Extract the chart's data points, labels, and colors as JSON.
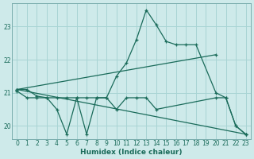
{
  "xlabel": "Humidex (Indice chaleur)",
  "bg_color": "#ceeaea",
  "line_color": "#1a6b5a",
  "grid_color": "#a8d4d4",
  "xlim": [
    -0.5,
    23.5
  ],
  "ylim": [
    19.6,
    23.7
  ],
  "yticks": [
    20,
    21,
    22,
    23
  ],
  "xticks": [
    0,
    1,
    2,
    3,
    4,
    5,
    6,
    7,
    8,
    9,
    10,
    11,
    12,
    13,
    14,
    15,
    16,
    17,
    18,
    19,
    20,
    21,
    22,
    23
  ],
  "lines": [
    {
      "x": [
        0,
        1,
        2,
        3,
        4,
        5,
        6,
        7,
        8,
        9,
        10,
        11,
        12,
        13,
        14,
        15,
        16,
        17,
        18,
        20,
        21,
        22,
        23
      ],
      "y": [
        21.1,
        21.1,
        20.9,
        20.85,
        20.85,
        20.85,
        20.85,
        20.85,
        20.85,
        20.85,
        21.5,
        21.9,
        22.6,
        23.5,
        23.05,
        22.55,
        22.45,
        22.45,
        22.45,
        21.0,
        20.85,
        20.0,
        19.75
      ]
    },
    {
      "x": [
        0,
        1,
        2,
        3,
        4,
        5,
        6,
        7,
        8,
        9,
        10,
        11,
        12,
        13,
        14,
        20,
        21,
        22,
        23
      ],
      "y": [
        21.05,
        20.85,
        20.85,
        20.85,
        20.5,
        19.75,
        20.85,
        19.75,
        20.85,
        20.85,
        20.5,
        20.85,
        20.85,
        20.85,
        20.5,
        20.85,
        20.85,
        20.0,
        19.75
      ]
    },
    {
      "x": [
        0,
        20
      ],
      "y": [
        21.1,
        22.15
      ]
    },
    {
      "x": [
        0,
        23
      ],
      "y": [
        21.1,
        19.75
      ]
    }
  ]
}
